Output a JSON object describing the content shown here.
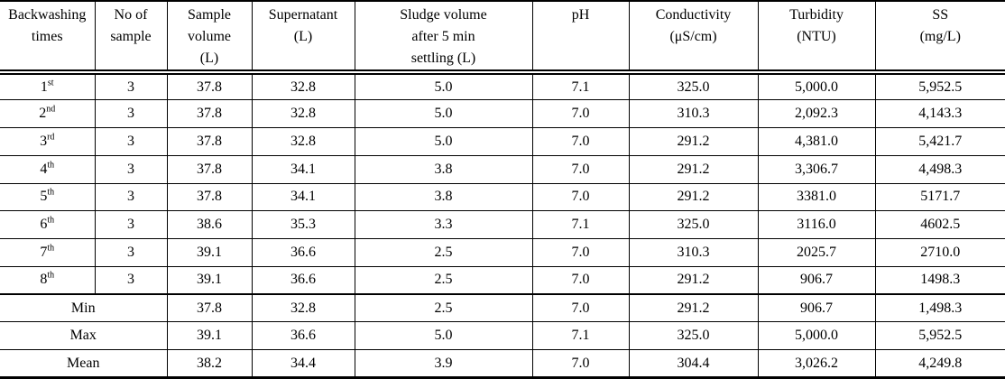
{
  "colors": {
    "border": "#000000",
    "background": "#ffffff",
    "text": "#000000"
  },
  "table": {
    "headers": [
      "Backwashing\ntimes",
      "No of\nsample",
      "Sample\nvolume\n(L)",
      "Supernatant\n(L)",
      "Sludge volume\nafter 5 min\nsettling (L)",
      "pH",
      "Conductivity\n(μS/cm)",
      "Turbidity\n(NTU)",
      "SS\n(mg/L)"
    ],
    "data_rows": [
      {
        "ordinal": "1",
        "suffix": "st",
        "no_of_sample": "3",
        "sample_volume": "37.8",
        "supernatant": "32.8",
        "sludge_volume": "5.0",
        "ph": "7.1",
        "conductivity": "325.0",
        "turbidity": "5,000.0",
        "ss": "5,952.5"
      },
      {
        "ordinal": "2",
        "suffix": "nd",
        "no_of_sample": "3",
        "sample_volume": "37.8",
        "supernatant": "32.8",
        "sludge_volume": "5.0",
        "ph": "7.0",
        "conductivity": "310.3",
        "turbidity": "2,092.3",
        "ss": "4,143.3"
      },
      {
        "ordinal": "3",
        "suffix": "rd",
        "no_of_sample": "3",
        "sample_volume": "37.8",
        "supernatant": "32.8",
        "sludge_volume": "5.0",
        "ph": "7.0",
        "conductivity": "291.2",
        "turbidity": "4,381.0",
        "ss": "5,421.7"
      },
      {
        "ordinal": "4",
        "suffix": "th",
        "no_of_sample": "3",
        "sample_volume": "37.8",
        "supernatant": "34.1",
        "sludge_volume": "3.8",
        "ph": "7.0",
        "conductivity": "291.2",
        "turbidity": "3,306.7",
        "ss": "4,498.3"
      },
      {
        "ordinal": "5",
        "suffix": "th",
        "no_of_sample": "3",
        "sample_volume": "37.8",
        "supernatant": "34.1",
        "sludge_volume": "3.8",
        "ph": "7.0",
        "conductivity": "291.2",
        "turbidity": "3381.0",
        "ss": "5171.7"
      },
      {
        "ordinal": "6",
        "suffix": "th",
        "no_of_sample": "3",
        "sample_volume": "38.6",
        "supernatant": "35.3",
        "sludge_volume": "3.3",
        "ph": "7.1",
        "conductivity": "325.0",
        "turbidity": "3116.0",
        "ss": "4602.5"
      },
      {
        "ordinal": "7",
        "suffix": "th",
        "no_of_sample": "3",
        "sample_volume": "39.1",
        "supernatant": "36.6",
        "sludge_volume": "2.5",
        "ph": "7.0",
        "conductivity": "310.3",
        "turbidity": "2025.7",
        "ss": "2710.0"
      },
      {
        "ordinal": "8",
        "suffix": "th",
        "no_of_sample": "3",
        "sample_volume": "39.1",
        "supernatant": "36.6",
        "sludge_volume": "2.5",
        "ph": "7.0",
        "conductivity": "291.2",
        "turbidity": "906.7",
        "ss": "1498.3"
      }
    ],
    "summary_rows": [
      {
        "label": "Min",
        "sample_volume": "37.8",
        "supernatant": "32.8",
        "sludge_volume": "2.5",
        "ph": "7.0",
        "conductivity": "291.2",
        "turbidity": "906.7",
        "ss": "1,498.3"
      },
      {
        "label": "Max",
        "sample_volume": "39.1",
        "supernatant": "36.6",
        "sludge_volume": "5.0",
        "ph": "7.1",
        "conductivity": "325.0",
        "turbidity": "5,000.0",
        "ss": "5,952.5"
      },
      {
        "label": "Mean",
        "sample_volume": "38.2",
        "supernatant": "34.4",
        "sludge_volume": "3.9",
        "ph": "7.0",
        "conductivity": "304.4",
        "turbidity": "3,026.2",
        "ss": "4,249.8"
      }
    ]
  }
}
